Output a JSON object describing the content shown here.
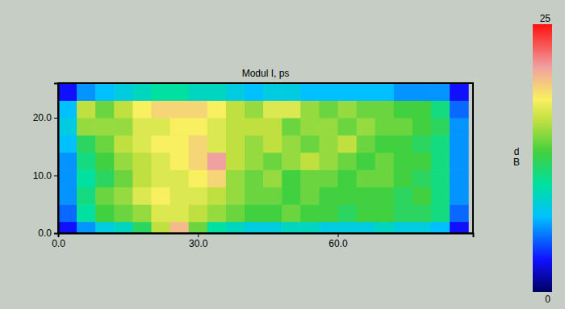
{
  "chart_data": {
    "type": "heatmap",
    "title": "Modul I, ps",
    "x_edges": [
      0,
      4,
      8,
      12,
      16,
      20,
      24,
      28,
      32,
      36,
      40,
      44,
      48,
      52,
      56,
      60,
      64,
      68,
      72,
      76,
      80,
      84,
      88
    ],
    "y_edges": [
      0,
      2,
      5,
      8,
      11,
      14,
      17,
      20,
      23,
      26
    ],
    "cells": [
      [
        3,
        6,
        8,
        9,
        12,
        16,
        20,
        14,
        10,
        9,
        8,
        8,
        9,
        9,
        8,
        8,
        8,
        9,
        8,
        8,
        7,
        3
      ],
      [
        5,
        10,
        13,
        14,
        15,
        17,
        17,
        16,
        15,
        14,
        13,
        13,
        14,
        13,
        13,
        12,
        13,
        13,
        12,
        12,
        11,
        5
      ],
      [
        6,
        11,
        14,
        15,
        17,
        18,
        17,
        17,
        16,
        15,
        14,
        14,
        13,
        14,
        13,
        13,
        13,
        13,
        12,
        13,
        11,
        6
      ],
      [
        6,
        10,
        12,
        14,
        16,
        17,
        17,
        18,
        19,
        15,
        14,
        15,
        13,
        14,
        14,
        13,
        14,
        14,
        13,
        12,
        11,
        6
      ],
      [
        6,
        11,
        13,
        15,
        16,
        17,
        18,
        19,
        21,
        16,
        15,
        14,
        15,
        16,
        15,
        14,
        13,
        14,
        13,
        13,
        11,
        6
      ],
      [
        7,
        12,
        14,
        16,
        17,
        18,
        18,
        19,
        17,
        16,
        15,
        16,
        15,
        14,
        15,
        16,
        14,
        13,
        13,
        12,
        11,
        6
      ],
      [
        8,
        15,
        15,
        15,
        17,
        17,
        18,
        18,
        17,
        16,
        16,
        16,
        14,
        15,
        15,
        14,
        15,
        14,
        14,
        13,
        12,
        6
      ],
      [
        7,
        16,
        14,
        16,
        18,
        19,
        19,
        19,
        18,
        16,
        15,
        17,
        17,
        15,
        14,
        15,
        14,
        14,
        13,
        13,
        11,
        5
      ],
      [
        3,
        6,
        7,
        8,
        9,
        10,
        10,
        9,
        9,
        8,
        7,
        8,
        8,
        7,
        7,
        7,
        7,
        7,
        6,
        6,
        6,
        3
      ]
    ],
    "xlim": [
      0,
      89
    ],
    "ylim": [
      0,
      26
    ],
    "xticks": [
      {
        "value": 0,
        "label": "0.0"
      },
      {
        "value": 30,
        "label": "30.0"
      },
      {
        "value": 60,
        "label": "60.0"
      }
    ],
    "yticks": [
      {
        "value": 0,
        "label": "0.0"
      },
      {
        "value": 10,
        "label": "10.0"
      },
      {
        "value": 20,
        "label": "20.0"
      }
    ],
    "colorbar": {
      "range": [
        0,
        25
      ],
      "ticks": [
        0,
        25
      ],
      "label": "dB"
    }
  }
}
